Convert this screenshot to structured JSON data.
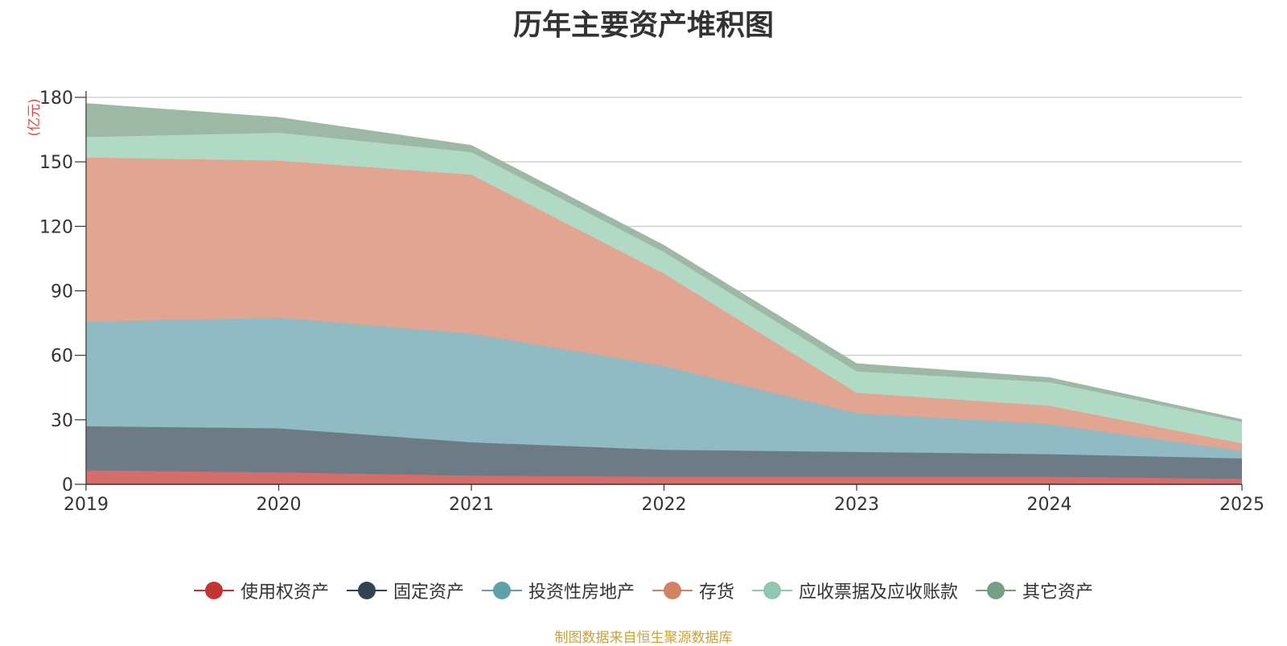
{
  "chart_data": {
    "type": "area",
    "stacked": true,
    "title": "历年主要资产堆积图",
    "unit_label": "(亿元)",
    "x": [
      "2019",
      "2020",
      "2021",
      "2022",
      "2023",
      "2024",
      "2025"
    ],
    "ylim": [
      0,
      180
    ],
    "yticks": [
      "0",
      "30",
      "60",
      "90",
      "120",
      "150",
      "180"
    ],
    "grid": true,
    "legend_position": "bottom",
    "series": [
      {
        "name": "使用权资产",
        "color": "#c23531",
        "fill": "#d46d6b",
        "values": [
          6.5,
          5.5,
          4.0,
          3.5,
          3.5,
          3.5,
          2.5
        ]
      },
      {
        "name": "固定资产",
        "color": "#2f4554",
        "fill": "#6d7b86",
        "values": [
          20.5,
          20.5,
          15.5,
          12.5,
          11.5,
          10.5,
          9.5
        ]
      },
      {
        "name": "投资性房地产",
        "color": "#61a0a8",
        "fill": "#90bbc2",
        "values": [
          48.5,
          51.5,
          50.5,
          39.0,
          18.0,
          14.0,
          3.5
        ]
      },
      {
        "name": "存货",
        "color": "#d48265",
        "fill": "#e1a592",
        "values": [
          76.5,
          73.0,
          74.0,
          43.0,
          9.5,
          8.5,
          3.5
        ]
      },
      {
        "name": "应收票据及应收账款",
        "color": "#91c7ae",
        "fill": "#b0dac6",
        "values": [
          9.5,
          13.0,
          10.5,
          10.0,
          10.0,
          11.0,
          10.0
        ]
      },
      {
        "name": "其它资产",
        "color": "#749f83",
        "fill": "#9db8a4",
        "values": [
          15.5,
          7.0,
          3.0,
          3.0,
          3.5,
          2.0,
          1.0
        ]
      }
    ]
  },
  "source_note": "制图数据来自恒生聚源数据库"
}
